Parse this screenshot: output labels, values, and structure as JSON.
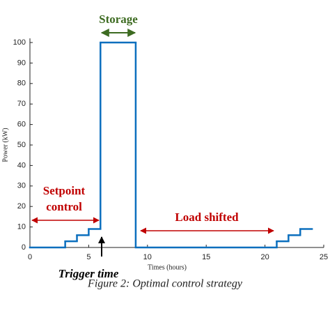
{
  "chart_data": {
    "type": "step",
    "x_label": "Times (hours)",
    "y_label": "Power (kW)",
    "x": [
      0,
      3,
      4,
      5,
      6,
      9,
      21,
      22,
      23,
      24
    ],
    "series": [
      {
        "name": "Power",
        "color": "#0b6fbe",
        "values": [
          0,
          3,
          6,
          9,
          100,
          0,
          3,
          6,
          9,
          9
        ]
      }
    ],
    "xlim": [
      0,
      25
    ],
    "xticks": [
      0,
      5,
      10,
      15,
      20,
      25
    ],
    "ylim": [
      0,
      100
    ],
    "yticks": [
      0,
      10,
      20,
      30,
      40,
      50,
      60,
      70,
      80,
      90,
      100
    ],
    "annotations": [
      {
        "text": "Storage",
        "color": "#3d6b21"
      },
      {
        "text": [
          "Setpoint",
          "control"
        ],
        "color": "#c00000"
      },
      {
        "text": "Load shifted",
        "color": "#c00000"
      },
      {
        "text": "Trigger time",
        "color": "#000000"
      }
    ]
  },
  "caption": "Figure 2: Optimal control strategy"
}
